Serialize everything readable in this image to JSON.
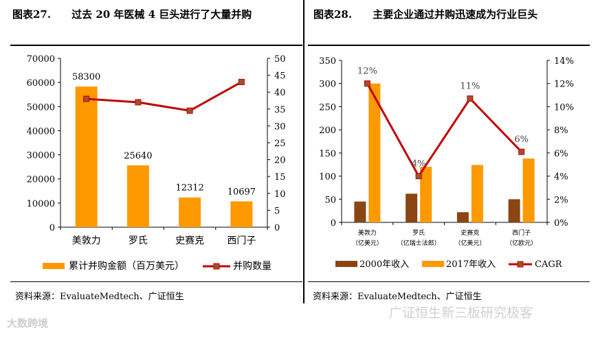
{
  "left": {
    "title_num": "图表27.",
    "title": "过去 20 年医械 4 巨头进行了大量并购",
    "source": "资料来源：EvaluateMedtech、广证恒生"
  },
  "right": {
    "title_num": "图表28.",
    "title": "主要企业通过并购迅速成为行业巨头",
    "source": "资料来源：EvaluateMedtech、广证恒生"
  },
  "colors": {
    "bar_orange": "#FF9900",
    "bar_brown": "#8B4513",
    "line_red": "#C00000",
    "marker": "#A0522D"
  },
  "watermark_left": "大数跨境",
  "watermark_right": "广证恒生新三板研究极客",
  "chart_data": [
    {
      "type": "bar",
      "categories": [
        "美敦力",
        "罗氏",
        "史赛克",
        "西门子"
      ],
      "series": [
        {
          "name": "累计并购金额（百万美元）",
          "type": "bar",
          "axis": "left",
          "values": [
            58300,
            25640,
            12312,
            10697
          ],
          "data_labels": [
            "58300",
            "25640",
            "12312",
            "10697"
          ]
        },
        {
          "name": "并购数量",
          "type": "line",
          "axis": "right",
          "values": [
            38,
            37,
            34.5,
            43
          ]
        }
      ],
      "y_left": {
        "lim": [
          0,
          70000
        ],
        "ticks": [
          "0",
          "10000",
          "20000",
          "30000",
          "40000",
          "50000",
          "60000",
          "70000"
        ]
      },
      "y_right": {
        "lim": [
          0,
          50
        ],
        "ticks": [
          "0",
          "5",
          "10",
          "15",
          "20",
          "25",
          "30",
          "35",
          "40",
          "45",
          "50"
        ]
      },
      "legend_position": "bottom"
    },
    {
      "type": "bar",
      "categories": [
        [
          "美敦力",
          "（亿美元）"
        ],
        [
          "罗氏",
          "（亿瑞士法郎）"
        ],
        [
          "史赛克",
          "（亿美元）"
        ],
        [
          "西门子",
          "（亿欧元）"
        ]
      ],
      "series": [
        {
          "name": "2000年收入",
          "type": "bar",
          "axis": "left",
          "values": [
            45,
            62,
            22,
            50
          ]
        },
        {
          "name": "2017年收入",
          "type": "bar",
          "axis": "left",
          "values": [
            300,
            120,
            124,
            138
          ]
        },
        {
          "name": "CAGR",
          "type": "line",
          "axis": "right",
          "values": [
            0.12,
            0.04,
            0.107,
            0.061
          ],
          "data_labels": [
            "12%",
            "4%",
            "11%",
            "6%"
          ]
        }
      ],
      "y_left": {
        "lim": [
          0,
          350
        ],
        "ticks": [
          "0",
          "50",
          "100",
          "150",
          "200",
          "250",
          "300",
          "350"
        ]
      },
      "y_right": {
        "lim": [
          0,
          0.14
        ],
        "ticks": [
          "0%",
          "2%",
          "4%",
          "6%",
          "8%",
          "10%",
          "12%",
          "14%"
        ]
      },
      "legend_position": "bottom"
    }
  ]
}
